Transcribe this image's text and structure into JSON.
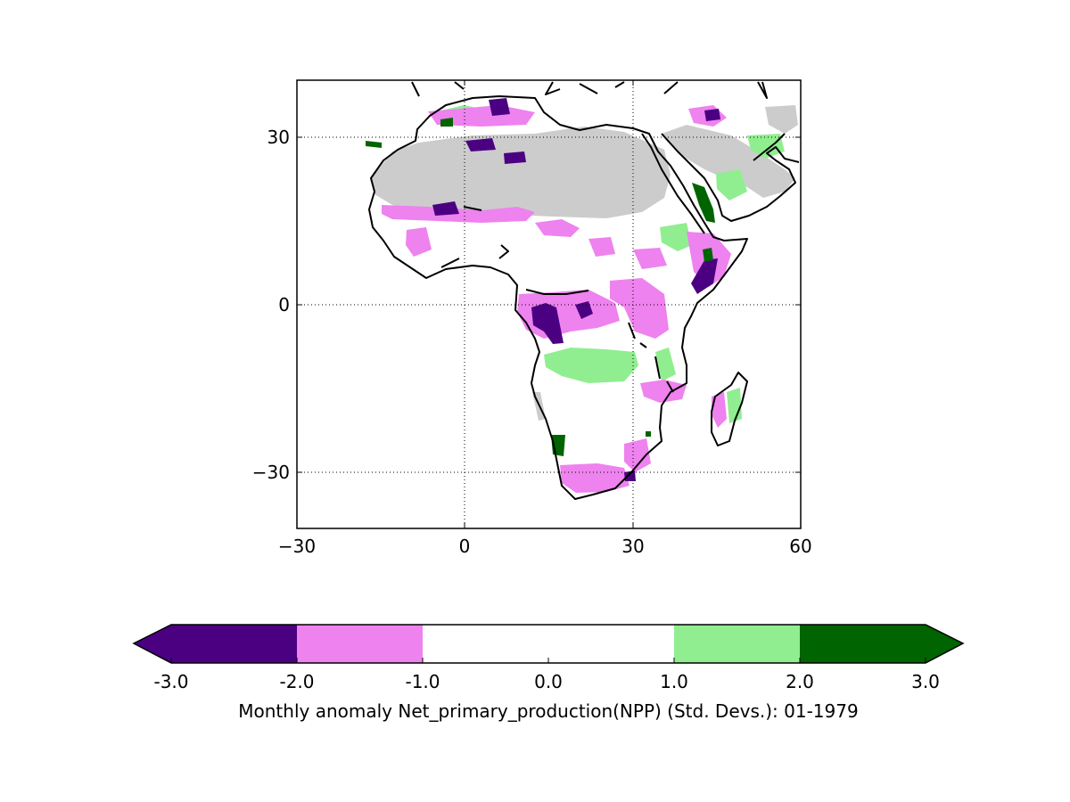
{
  "figure": {
    "caption": "Monthly anomaly Net_primary_production(NPP) (Std. Devs.): 01-1979"
  },
  "map": {
    "extent": {
      "lon": [
        -30,
        60
      ],
      "lat": [
        -40,
        40
      ]
    },
    "x_ticks": [
      -30,
      0,
      30,
      60
    ],
    "y_ticks": [
      -30,
      0,
      30
    ],
    "x_tick_labels": [
      "−30",
      "0",
      "30",
      "60"
    ],
    "y_tick_labels": [
      "−30",
      "0",
      "30"
    ],
    "grid": "dotted",
    "no_data_color": "#cccccc"
  },
  "colorbar": {
    "tick_values": [
      -3.0,
      -2.0,
      -1.0,
      0.0,
      1.0,
      2.0,
      3.0
    ],
    "tick_labels": [
      "-3.0",
      "-2.0",
      "-1.0",
      "0.0",
      "1.0",
      "2.0",
      "3.0"
    ],
    "extend": "both",
    "bins": [
      {
        "range": [
          -3.0,
          -2.0
        ],
        "color": "#4b0082"
      },
      {
        "range": [
          -2.0,
          -1.0
        ],
        "color": "#ee82ee"
      },
      {
        "range": [
          -1.0,
          0.0
        ],
        "color": "#ffffff"
      },
      {
        "range": [
          0.0,
          1.0
        ],
        "color": "#ffffff"
      },
      {
        "range": [
          1.0,
          2.0
        ],
        "color": "#90ee90"
      },
      {
        "range": [
          2.0,
          3.0
        ],
        "color": "#006400"
      }
    ],
    "under_color": "#4b0082",
    "over_color": "#006400"
  },
  "chart_data": {
    "type": "heatmap",
    "title": "",
    "variable": "Monthly anomaly Net_primary_production(NPP) (Std. Devs.): 01-1979",
    "units": "Std. Devs.",
    "xlim": [
      -30,
      60
    ],
    "ylim": [
      -40,
      40
    ],
    "anomaly_regions": [
      {
        "class": "no data",
        "lon": [
          -17,
          36
        ],
        "lat": [
          17,
          32
        ]
      },
      {
        "class": "no data",
        "lon": [
          38,
          58
        ],
        "lat": [
          17,
          34
        ]
      },
      {
        "class": "-3 to -2",
        "lon": [
          11,
          17
        ],
        "lat": [
          -7,
          0
        ]
      },
      {
        "class": "-3 to -2",
        "lon": [
          19,
          24
        ],
        "lat": [
          -3,
          0
        ]
      },
      {
        "class": "-3 to -2",
        "lon": [
          0,
          10
        ],
        "lat": [
          26,
          30
        ]
      },
      {
        "class": "-3 to -2",
        "lon": [
          41,
          46
        ],
        "lat": [
          1,
          6
        ]
      },
      {
        "class": "-3 to -2",
        "lon": [
          5,
          14
        ],
        "lat": [
          34,
          37
        ]
      },
      {
        "class": "-2 to -1",
        "lon": [
          -15,
          10
        ],
        "lat": [
          15,
          19
        ]
      },
      {
        "class": "-2 to -1",
        "lon": [
          10,
          27
        ],
        "lat": [
          -10,
          3
        ]
      },
      {
        "class": "-2 to -1",
        "lon": [
          17,
          33
        ],
        "lat": [
          -35,
          -28
        ]
      },
      {
        "class": "-2 to -1",
        "lon": [
          30,
          40
        ],
        "lat": [
          -20,
          -14
        ]
      },
      {
        "class": "-2 to -1",
        "lon": [
          44,
          50
        ],
        "lat": [
          -22,
          -15
        ]
      },
      {
        "class": "-2 to -1",
        "lon": [
          38,
          50
        ],
        "lat": [
          5,
          15
        ]
      },
      {
        "class": "1 to 2",
        "lon": [
          14,
          30
        ],
        "lat": [
          -14,
          -9
        ]
      },
      {
        "class": "1 to 2",
        "lon": [
          46,
          53
        ],
        "lat": [
          27,
          31
        ]
      },
      {
        "class": "1 to 2",
        "lon": [
          -5,
          6
        ],
        "lat": [
          33,
          36
        ]
      },
      {
        "class": "1 to 2",
        "lon": [
          34,
          42
        ],
        "lat": [
          7,
          15
        ]
      },
      {
        "class": "2 to 3",
        "lon": [
          40,
          43
        ],
        "lat": [
          15,
          21
        ]
      },
      {
        "class": "2 to 3",
        "lon": [
          44,
          46
        ],
        "lat": [
          7,
          10
        ]
      },
      {
        "class": "2 to 3",
        "lon": [
          -17,
          -15
        ],
        "lat": [
          28,
          29
        ]
      }
    ]
  }
}
